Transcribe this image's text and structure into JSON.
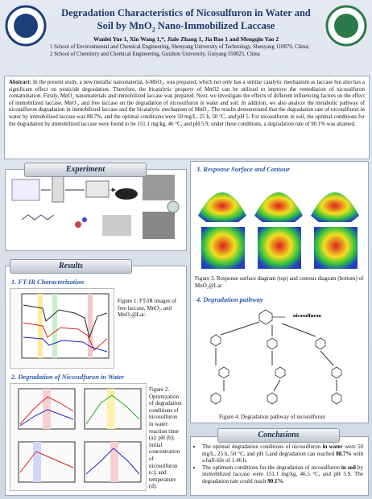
{
  "header": {
    "title_line1": "Degradation Characteristics of Nicosulfuron in Water and",
    "title_line2": [
      {
        "text": "Soil by MnO"
      },
      {
        "text": "2",
        "sub": true
      },
      {
        "text": " Nano-Immobilized Laccase"
      }
    ],
    "authors": "Wanlei Yue 1, Xin Wang 1,*, Jiale Zhang 1, Jia Bao 1 and Mengqin Yao 2",
    "affiliations": [
      "1 School of Environmental and Chemical Engineering, Shenyang University of Technology, Shenyang 110870, China;",
      "2 School of Chemistry and Chemical Engineering, Guizhou University, Guiyang 550025, China"
    ]
  },
  "abstract": {
    "label": "Abstract:",
    "text": "In the present study, a new metallic nanomaterial, δ-MnO₂, was prepared, which not only has a similar catalytic mechanism as laccase but also has a significant effect on pesticide degradation. Therefore, the bicatalytic property of MnO2 can be utilized to improve the remediation of nicosulfuron contamination. Firstly, MnO₂ nanomaterials and immobilized laccase was prepared. Next, we investigate the effects of different influencing factors on the effect of immobilized laccase, MnO₂, and free laccase on the degradation of nicosulfuron in water and soil. In addition, we also analyze the metabolic pathway of nicosulfuron degradation in immobilized laccase and the bicatalytic mechanism of MnO₂. The results demonstrated that the degradation rate of nicosulfuron in water by immobilized laccase was 88.7%, and the optimal conditions were 50 mg/L, 25 h, 50 °C, and pH 5. For nicosulfuron in soil, the optimal conditions for the degradation by immobilized laccase were found to be 151.1 mg/kg, 46 °C, and pH 5.9; under these conditions, a degradation rate of 90.1% was attained."
  },
  "experiment": {
    "title": "Experiment"
  },
  "results": {
    "title": "Results",
    "ftir_heading": "1. FT-IR Characterization",
    "figure1_caption": "Figure 1. FT-IR images of free laccase, MnO₂, and MnO₂@Lac.",
    "degradation_heading": "2. Degradation of Nicosulfuron in Water",
    "figure2_caption": "Figure 2. Optimization of degradation conditions of nicosulfuron in water: reaction time (a); pH (b); initial concentration of nicosulfuron (c); and temperature (d).",
    "response_heading": "3. Response Surface and Contour",
    "figure3_caption": "Figure 3. Response surface diagram (top) and contour diagram (bottom) of MnO₂@Lac",
    "pathway_heading": "4. Degradation pathway",
    "pathway_compound": "nicosulfuron",
    "figure4_caption": "Figure 4. Degradation pathway of nicosulfuron"
  },
  "conclusions": {
    "title": "Conclusions",
    "bullets": [
      [
        {
          "text": "The optimal degradation conditions of nicosulfuron "
        },
        {
          "text": "in water",
          "bold": true
        },
        {
          "text": " were 50 mg/L, 25 h, 50 °C, and pH 5,and degradation can reached "
        },
        {
          "text": "88.7%",
          "bold": true
        },
        {
          "text": " with a half-life of 1.46 h."
        }
      ],
      [
        {
          "text": "The optimum conditions for the degradation of nicosulfuron "
        },
        {
          "text": "in soil",
          "bold": true
        },
        {
          "text": " by immobilized laccase were 151.1 mg/kg, 46.5 °C, and pH 5.9. The degradation rate could reach "
        },
        {
          "text": "90.1%",
          "bold": true
        },
        {
          "text": "."
        }
      ]
    ]
  }
}
